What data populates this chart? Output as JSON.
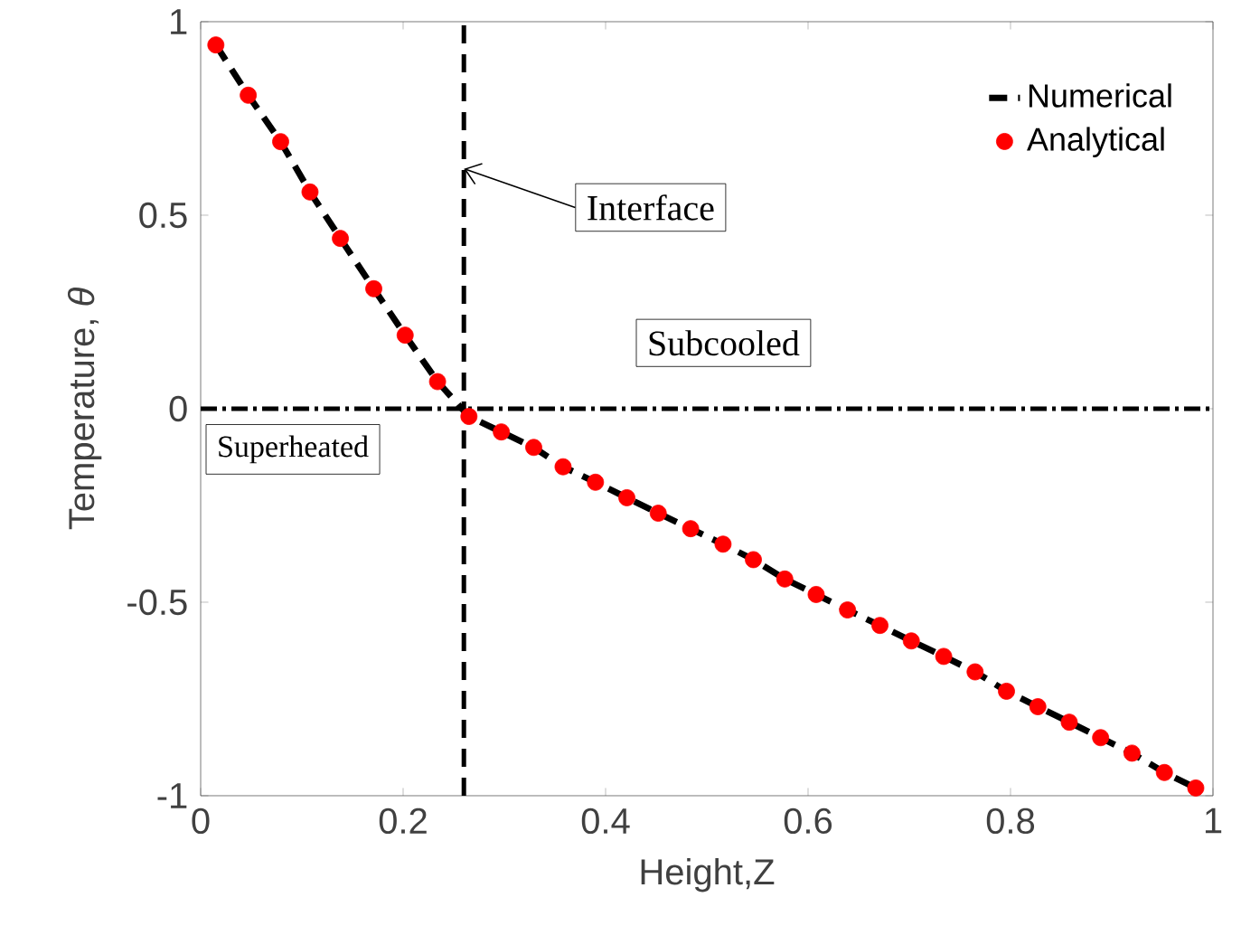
{
  "chart_data": {
    "type": "line",
    "xlabel": "Height,Z",
    "ylabel": "Temperature,   *θ*",
    "xlim": [
      0,
      1
    ],
    "ylim": [
      -1,
      1
    ],
    "xticks": [
      0,
      0.2,
      0.4,
      0.6,
      0.8,
      1
    ],
    "yticks": [
      -1,
      -0.5,
      0,
      0.5,
      1
    ],
    "legend": "top right",
    "series": [
      {
        "name": "Numerical",
        "type": "line",
        "color": "#000000",
        "line_style": "dashed",
        "marker": "none",
        "x": [
          0.015,
          0.047,
          0.079,
          0.108,
          0.138,
          0.171,
          0.202,
          0.234,
          0.265,
          0.297,
          0.329,
          0.358,
          0.39,
          0.421,
          0.452,
          0.484,
          0.516,
          0.546,
          0.577,
          0.608,
          0.639,
          0.671,
          0.702,
          0.734,
          0.765,
          0.796,
          0.827,
          0.858,
          0.889,
          0.92,
          0.952,
          0.983
        ],
        "values": [
          0.94,
          0.81,
          0.69,
          0.56,
          0.44,
          0.31,
          0.19,
          0.07,
          -0.02,
          -0.06,
          -0.1,
          -0.15,
          -0.19,
          -0.23,
          -0.27,
          -0.31,
          -0.35,
          -0.39,
          -0.44,
          -0.48,
          -0.52,
          -0.56,
          -0.6,
          -0.64,
          -0.68,
          -0.73,
          -0.77,
          -0.81,
          -0.85,
          -0.89,
          -0.94,
          -0.98
        ]
      },
      {
        "name": "Analytical",
        "type": "scatter",
        "color": "#ff0000",
        "marker": "circle",
        "x": [
          0.015,
          0.047,
          0.079,
          0.108,
          0.138,
          0.171,
          0.202,
          0.234,
          0.265,
          0.297,
          0.329,
          0.358,
          0.39,
          0.421,
          0.452,
          0.484,
          0.516,
          0.546,
          0.577,
          0.608,
          0.639,
          0.671,
          0.702,
          0.734,
          0.765,
          0.796,
          0.827,
          0.858,
          0.889,
          0.92,
          0.952,
          0.983
        ],
        "values": [
          0.94,
          0.81,
          0.69,
          0.56,
          0.44,
          0.31,
          0.19,
          0.07,
          -0.02,
          -0.06,
          -0.1,
          -0.15,
          -0.19,
          -0.23,
          -0.27,
          -0.31,
          -0.35,
          -0.39,
          -0.44,
          -0.48,
          -0.52,
          -0.56,
          -0.6,
          -0.64,
          -0.68,
          -0.73,
          -0.77,
          -0.81,
          -0.85,
          -0.89,
          -0.94,
          -0.98
        ]
      }
    ],
    "ref_lines": [
      {
        "axis": "x",
        "value": 0.26,
        "line_style": "dashed"
      },
      {
        "axis": "y",
        "value": 0,
        "line_style": "dashdot"
      }
    ],
    "annotations": [
      {
        "text": "Interface",
        "x": 0.26,
        "y": 0.62
      },
      "Subcooled",
      "Superheated"
    ]
  }
}
